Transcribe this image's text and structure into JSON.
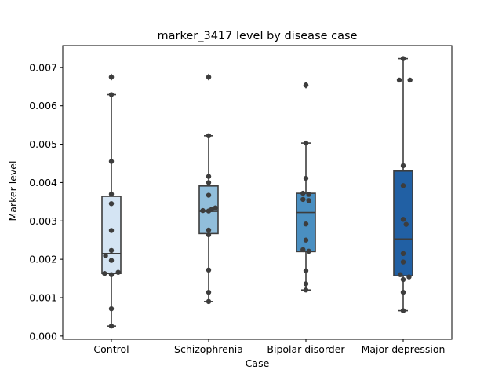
{
  "chart_data": {
    "type": "box",
    "title": "marker_3417 level by disease case",
    "xlabel": "Case",
    "ylabel": "Marker level",
    "ylim": [
      -8.5e-05,
      0.00757
    ],
    "yticks": [
      0.0,
      0.001,
      0.002,
      0.003,
      0.004,
      0.005,
      0.006,
      0.007
    ],
    "ytick_labels": [
      "0.000",
      "0.001",
      "0.002",
      "0.003",
      "0.004",
      "0.005",
      "0.006",
      "0.007"
    ],
    "grid": false,
    "categories": [
      "Control",
      "Schizophrenia",
      "Bipolar disorder",
      "Major depression"
    ],
    "colors": [
      "#d4e4f3",
      "#91bedb",
      "#4a8fc1",
      "#2160a4"
    ],
    "boxes": [
      {
        "q1": 0.00163,
        "median": 0.00215,
        "q3": 0.00364,
        "whisker_low": 0.00026,
        "whisker_high": 0.00629,
        "outliers": [
          0.00675
        ]
      },
      {
        "q1": 0.00267,
        "median": 0.00325,
        "q3": 0.00391,
        "whisker_low": 0.0009,
        "whisker_high": 0.00522,
        "outliers": [
          0.00675
        ]
      },
      {
        "q1": 0.0022,
        "median": 0.00322,
        "q3": 0.00372,
        "whisker_low": 0.0012,
        "whisker_high": 0.00503,
        "outliers": [
          0.00654
        ]
      },
      {
        "q1": 0.00157,
        "median": 0.00253,
        "q3": 0.0043,
        "whisker_low": 0.00066,
        "whisker_high": 0.00723,
        "outliers": []
      }
    ],
    "points": [
      [
        {
          "x": 0.0,
          "y": 0.00675
        },
        {
          "x": 0.0,
          "y": 0.00629
        },
        {
          "x": 0.0,
          "y": 0.00455
        },
        {
          "x": 0.0,
          "y": 0.0037
        },
        {
          "x": 0.0,
          "y": 0.00345
        },
        {
          "x": 0.0,
          "y": 0.00275
        },
        {
          "x": 0.0,
          "y": 0.00223
        },
        {
          "x": -0.06,
          "y": 0.00209
        },
        {
          "x": 0.0,
          "y": 0.00197
        },
        {
          "x": 0.07,
          "y": 0.00166
        },
        {
          "x": -0.07,
          "y": 0.00163
        },
        {
          "x": 0.0,
          "y": 0.0016
        },
        {
          "x": 0.0,
          "y": 0.00071
        },
        {
          "x": 0.0,
          "y": 0.00026
        }
      ],
      [
        {
          "x": 0.0,
          "y": 0.00675
        },
        {
          "x": 0.0,
          "y": 0.00522
        },
        {
          "x": 0.0,
          "y": 0.00416
        },
        {
          "x": 0.0,
          "y": 0.004
        },
        {
          "x": 0.0,
          "y": 0.00367
        },
        {
          "x": 0.07,
          "y": 0.00334
        },
        {
          "x": 0.03,
          "y": 0.0033
        },
        {
          "x": -0.06,
          "y": 0.00327
        },
        {
          "x": 0.0,
          "y": 0.00326
        },
        {
          "x": 0.0,
          "y": 0.00276
        },
        {
          "x": 0.0,
          "y": 0.00264
        },
        {
          "x": 0.0,
          "y": 0.00172
        },
        {
          "x": 0.0,
          "y": 0.00114
        },
        {
          "x": 0.0,
          "y": 0.0009
        }
      ],
      [
        {
          "x": 0.0,
          "y": 0.00654
        },
        {
          "x": 0.0,
          "y": 0.00503
        },
        {
          "x": 0.0,
          "y": 0.00411
        },
        {
          "x": -0.03,
          "y": 0.00372
        },
        {
          "x": 0.03,
          "y": 0.00369
        },
        {
          "x": -0.03,
          "y": 0.00356
        },
        {
          "x": 0.03,
          "y": 0.00353
        },
        {
          "x": 0.0,
          "y": 0.00292
        },
        {
          "x": 0.0,
          "y": 0.0025
        },
        {
          "x": -0.03,
          "y": 0.00225
        },
        {
          "x": 0.03,
          "y": 0.00221
        },
        {
          "x": 0.0,
          "y": 0.0017
        },
        {
          "x": 0.0,
          "y": 0.00136
        },
        {
          "x": 0.0,
          "y": 0.0012
        }
      ],
      [
        {
          "x": 0.0,
          "y": 0.00723
        },
        {
          "x": -0.04,
          "y": 0.00667
        },
        {
          "x": 0.07,
          "y": 0.00667
        },
        {
          "x": 0.0,
          "y": 0.00444
        },
        {
          "x": 0.0,
          "y": 0.00392
        },
        {
          "x": 0.0,
          "y": 0.00304
        },
        {
          "x": 0.03,
          "y": 0.00291
        },
        {
          "x": 0.0,
          "y": 0.00215
        },
        {
          "x": 0.0,
          "y": 0.00193
        },
        {
          "x": -0.03,
          "y": 0.0016
        },
        {
          "x": 0.06,
          "y": 0.00154
        },
        {
          "x": 0.0,
          "y": 0.00147
        },
        {
          "x": 0.0,
          "y": 0.00114
        },
        {
          "x": 0.0,
          "y": 0.00066
        }
      ]
    ]
  }
}
